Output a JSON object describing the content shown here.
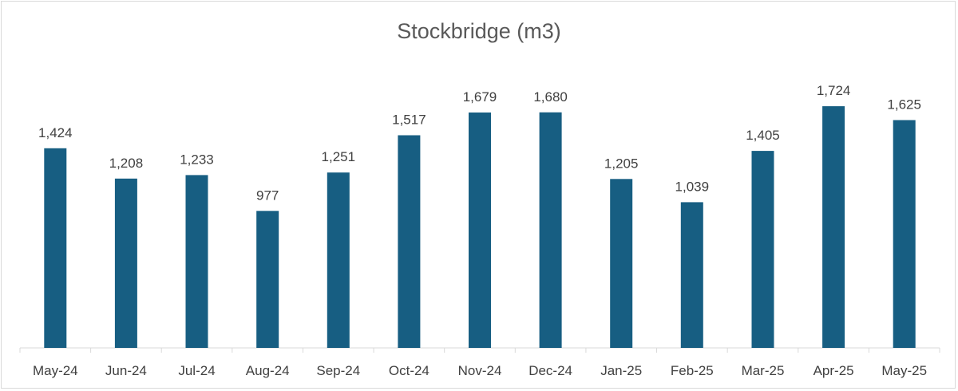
{
  "chart_data": {
    "type": "bar",
    "title": "Stockbridge (m3)",
    "categories": [
      "May-24",
      "Jun-24",
      "Jul-24",
      "Aug-24",
      "Sep-24",
      "Oct-24",
      "Nov-24",
      "Dec-24",
      "Jan-25",
      "Feb-25",
      "Mar-25",
      "Apr-25",
      "May-25"
    ],
    "values": [
      1424,
      1208,
      1233,
      977,
      1251,
      1517,
      1679,
      1680,
      1205,
      1039,
      1405,
      1724,
      1625
    ],
    "data_labels": [
      "1,424",
      "1,208",
      "1,233",
      "977",
      "1,251",
      "1,517",
      "1,679",
      "1,680",
      "1,205",
      "1,039",
      "1,405",
      "1,724",
      "1,625"
    ],
    "xlabel": "",
    "ylabel": "",
    "ylim": [
      0,
      2000
    ],
    "grid": false,
    "legend": "none",
    "bar_color": "#175e82",
    "axis_color": "#d9d9d9"
  }
}
